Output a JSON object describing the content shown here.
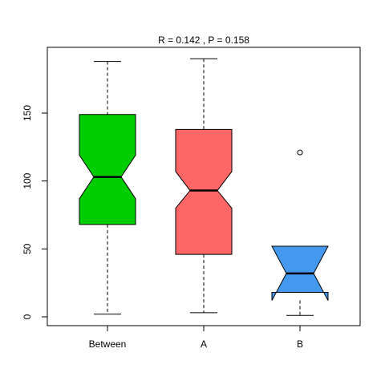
{
  "chart_data": {
    "type": "boxplot",
    "title": "R =  0.142 ,  P =  0.158",
    "xlabel": "",
    "ylabel": "",
    "ylim": [
      -5,
      195
    ],
    "yticks": [
      0,
      50,
      100,
      150
    ],
    "notched": true,
    "grid": false,
    "legend": "none",
    "categories": [
      "Between",
      "A",
      "B"
    ],
    "colors": [
      "#00CD00",
      "#FF6666",
      "#4499EE"
    ],
    "boxes": [
      {
        "category": "Between",
        "whisker_low": 2,
        "q1": 68,
        "notch_low": 87,
        "median": 103,
        "notch_high": 119,
        "q3": 149,
        "whisker_high": 188,
        "outliers": []
      },
      {
        "category": "A",
        "whisker_low": 3,
        "q1": 46,
        "notch_low": 80,
        "median": 93,
        "notch_high": 107,
        "q3": 138,
        "whisker_high": 190,
        "outliers": []
      },
      {
        "category": "B",
        "whisker_low": 1,
        "q1": 18,
        "notch_low": 12,
        "median": 32,
        "notch_high": 52,
        "q3": 52,
        "whisker_high": 52,
        "outliers": [
          121
        ]
      }
    ]
  }
}
